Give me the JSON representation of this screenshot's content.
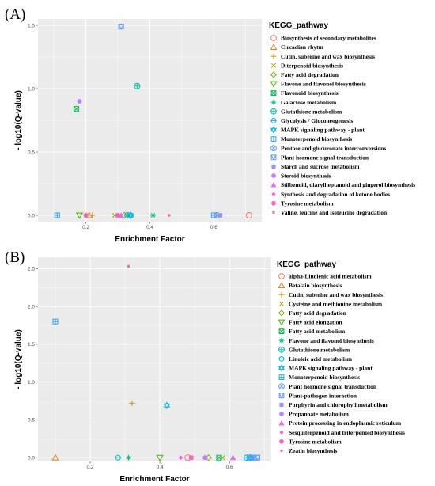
{
  "chart_data": [
    {
      "panel": "(A)",
      "type": "scatter",
      "xlabel": "Enrichment Factor",
      "ylabel": "- log10(Q-value)",
      "xlim": [
        0.05,
        0.75
      ],
      "ylim": [
        -0.05,
        1.55
      ],
      "xticks": [
        0.2,
        0.4,
        0.6
      ],
      "xtick_labels": [
        "0.2",
        "0.4",
        "0.6"
      ],
      "yticks": [
        0.0,
        0.5,
        1.0,
        1.5
      ],
      "ytick_labels": [
        "0.0",
        "0.5",
        "1.0",
        "1.5"
      ],
      "grid": true,
      "legend_title": "KEGG_pathway",
      "legend_position": "right",
      "series": [
        {
          "name": "Biosynthesis of secondary metabolites",
          "color": "#F8766D",
          "shape": "circle-open",
          "x": [
            0.71
          ],
          "y": [
            0.0
          ]
        },
        {
          "name": "Circadian rhytm",
          "color": "#E7851E",
          "shape": "triangle-open",
          "x": [
            0.21
          ],
          "y": [
            0.0
          ]
        },
        {
          "name": "Cutin, suberine and wax biosynthesis",
          "color": "#D09400",
          "shape": "plus",
          "x": [
            0.22
          ],
          "y": [
            0.0
          ]
        },
        {
          "name": "Diterpenoid biosynthesis",
          "color": "#B2A100",
          "shape": "cross",
          "x": [
            0.29
          ],
          "y": [
            0.0
          ]
        },
        {
          "name": "Fatty acid degradation",
          "color": "#89AC00",
          "shape": "diamond-open",
          "x": [
            0.32
          ],
          "y": [
            0.0
          ]
        },
        {
          "name": "Flavone and flavonol biosynthesis",
          "color": "#45B500",
          "shape": "triangle-down-open",
          "x": [
            0.18
          ],
          "y": [
            0.0
          ]
        },
        {
          "name": "Flavonoid biosynthesis",
          "color": "#00BC51",
          "shape": "square-cross",
          "x": [
            0.17
          ],
          "y": [
            0.84
          ]
        },
        {
          "name": "Galactose metabolism",
          "color": "#00C087",
          "shape": "asterisk",
          "x": [
            0.41
          ],
          "y": [
            0.0
          ]
        },
        {
          "name": "Glutathione metabolism",
          "color": "#00C0B2",
          "shape": "circle-plus",
          "x": [
            0.33,
            0.36
          ],
          "y": [
            0.0,
            1.02
          ]
        },
        {
          "name": "Glycolysis / Gluconeogenesis",
          "color": "#00BCD6",
          "shape": "circle-cross-line",
          "x": [
            0.34
          ],
          "y": [
            0.0
          ]
        },
        {
          "name": "MAPK signaling pathway - plant",
          "color": "#00B3F2",
          "shape": "star-of-david",
          "x": [
            0.34
          ],
          "y": [
            0.0
          ]
        },
        {
          "name": "Monoterpenoid biosynthesis",
          "color": "#29A3FF",
          "shape": "square-plus",
          "x": [
            0.11,
            0.6
          ],
          "y": [
            0.0,
            0.0
          ]
        },
        {
          "name": "Pentose and glucuronate interconversions",
          "color": "#619CFF",
          "shape": "circle-x",
          "x": [
            0.61
          ],
          "y": [
            0.0
          ]
        },
        {
          "name": "Plant hormone signal transduction",
          "color": "#619CFF",
          "shape": "square-triangle",
          "x": [
            0.31
          ],
          "y": [
            1.49
          ]
        },
        {
          "name": "Starch and sucrose metabolism",
          "color": "#9C8DFF",
          "shape": "square-filled",
          "x": [
            0.62
          ],
          "y": [
            0.0
          ]
        },
        {
          "name": "Steroid biosynthesis",
          "color": "#C77CFF",
          "shape": "circle-filled",
          "x": [
            0.18
          ],
          "y": [
            0.9
          ]
        },
        {
          "name": "Stilbenoid, diarylheptanoid and gingerol biosynthesis",
          "color": "#E76BF3",
          "shape": "triangle-filled",
          "x": [
            0.31
          ],
          "y": [
            0.0
          ]
        },
        {
          "name": "Synthesis and degradation of ketone bodies",
          "color": "#F563E3",
          "shape": "diamond-filled",
          "x": [
            0.3
          ],
          "y": [
            0.0
          ]
        },
        {
          "name": "Tyrosine metabolism",
          "color": "#FF61C3",
          "shape": "circle-filled",
          "x": [
            0.2,
            0.3
          ],
          "y": [
            0.0,
            0.0
          ]
        },
        {
          "name": "Valine, leucine and isoleucine degradation",
          "color": "#FF6C91",
          "shape": "circle-small",
          "x": [
            0.46
          ],
          "y": [
            0.0
          ]
        }
      ]
    },
    {
      "panel": "(B)",
      "type": "scatter",
      "xlabel": "Enrichment Factor",
      "ylabel": "- log10(Q-value)",
      "xlim": [
        0.05,
        0.72
      ],
      "ylim": [
        -0.05,
        2.65
      ],
      "xticks": [
        0.2,
        0.4,
        0.6
      ],
      "xtick_labels": [
        "0.2",
        "0.4",
        "0.6"
      ],
      "yticks": [
        0.0,
        0.5,
        1.0,
        1.5,
        2.0,
        2.5
      ],
      "ytick_labels": [
        "0.0",
        "0.5",
        "1.0",
        "1.5",
        "2.0",
        "2.5"
      ],
      "grid": true,
      "legend_title": "KEGG_pathway",
      "legend_position": "right",
      "series": [
        {
          "name": "alpha-Linolenic acid metabolism",
          "color": "#F8766D",
          "shape": "circle-open",
          "x": [
            0.48
          ],
          "y": [
            0.0
          ]
        },
        {
          "name": "Betalain biosynthesis",
          "color": "#E7851E",
          "shape": "triangle-open",
          "x": [
            0.1
          ],
          "y": [
            0.0
          ]
        },
        {
          "name": "Cutin, suberine and wax biosynthesis",
          "color": "#D09400",
          "shape": "plus",
          "x": [
            0.32
          ],
          "y": [
            0.72
          ]
        },
        {
          "name": "Cysteine and methionine metabolism",
          "color": "#B2A100",
          "shape": "cross",
          "x": [
            0.58
          ],
          "y": [
            0.0
          ]
        },
        {
          "name": "Fatty acid degradation",
          "color": "#89AC00",
          "shape": "diamond-open",
          "x": [
            0.54
          ],
          "y": [
            0.0
          ]
        },
        {
          "name": "Fatty acid elongation",
          "color": "#45B500",
          "shape": "triangle-down-open",
          "x": [
            0.4
          ],
          "y": [
            0.0
          ]
        },
        {
          "name": "Fatty acid metabolism",
          "color": "#00BC51",
          "shape": "square-cross",
          "x": [
            0.57
          ],
          "y": [
            0.0
          ]
        },
        {
          "name": "Flavone and flavonol biosynthesis",
          "color": "#00C087",
          "shape": "asterisk",
          "x": [
            0.31
          ],
          "y": [
            0.0
          ]
        },
        {
          "name": "Glutathione metabolism",
          "color": "#00C0B2",
          "shape": "circle-plus",
          "x": [
            0.65
          ],
          "y": [
            0.0
          ]
        },
        {
          "name": "Linoleic acid metabolism",
          "color": "#00BCD6",
          "shape": "circle-cross-line",
          "x": [
            0.28
          ],
          "y": [
            0.0
          ]
        },
        {
          "name": "MAPK signaling pathway - plant",
          "color": "#00B3F2",
          "shape": "star-of-david",
          "x": [
            0.42,
            0.66
          ],
          "y": [
            0.69,
            0.0
          ]
        },
        {
          "name": "Monoterpenoid biosynthesis",
          "color": "#29A3FF",
          "shape": "square-plus",
          "x": [
            0.1,
            0.67
          ],
          "y": [
            1.8,
            0.0
          ]
        },
        {
          "name": "Plant hormone signal transduction",
          "color": "#619CFF",
          "shape": "circle-x",
          "x": [
            0.66
          ],
          "y": [
            0.0
          ]
        },
        {
          "name": "Plant-pathogen interaction",
          "color": "#619CFF",
          "shape": "square-triangle",
          "x": [
            0.68
          ],
          "y": [
            0.0
          ]
        },
        {
          "name": "Porphyrin and chlorophyll metabolism",
          "color": "#9C8DFF",
          "shape": "square-filled",
          "x": [
            0.49
          ],
          "y": [
            0.0
          ]
        },
        {
          "name": "Propanoate metabolism",
          "color": "#C77CFF",
          "shape": "circle-filled",
          "x": [
            0.53
          ],
          "y": [
            0.0
          ]
        },
        {
          "name": "Protein processing in endoplasmic reticulum",
          "color": "#E76BF3",
          "shape": "triangle-filled",
          "x": [
            0.61
          ],
          "y": [
            0.0
          ]
        },
        {
          "name": "Sesquiterpenoid and triterpenoid biosynthesis",
          "color": "#F563E3",
          "shape": "diamond-filled",
          "x": [
            0.46
          ],
          "y": [
            0.0
          ]
        },
        {
          "name": "Tyrosine metabolism",
          "color": "#FF61C3",
          "shape": "circle-filled",
          "x": [
            0.49
          ],
          "y": [
            0.0
          ]
        },
        {
          "name": "Zeatin biosynthesis",
          "color": "#FF6C91",
          "shape": "circle-small",
          "x": [
            0.31
          ],
          "y": [
            2.53
          ]
        }
      ]
    }
  ]
}
